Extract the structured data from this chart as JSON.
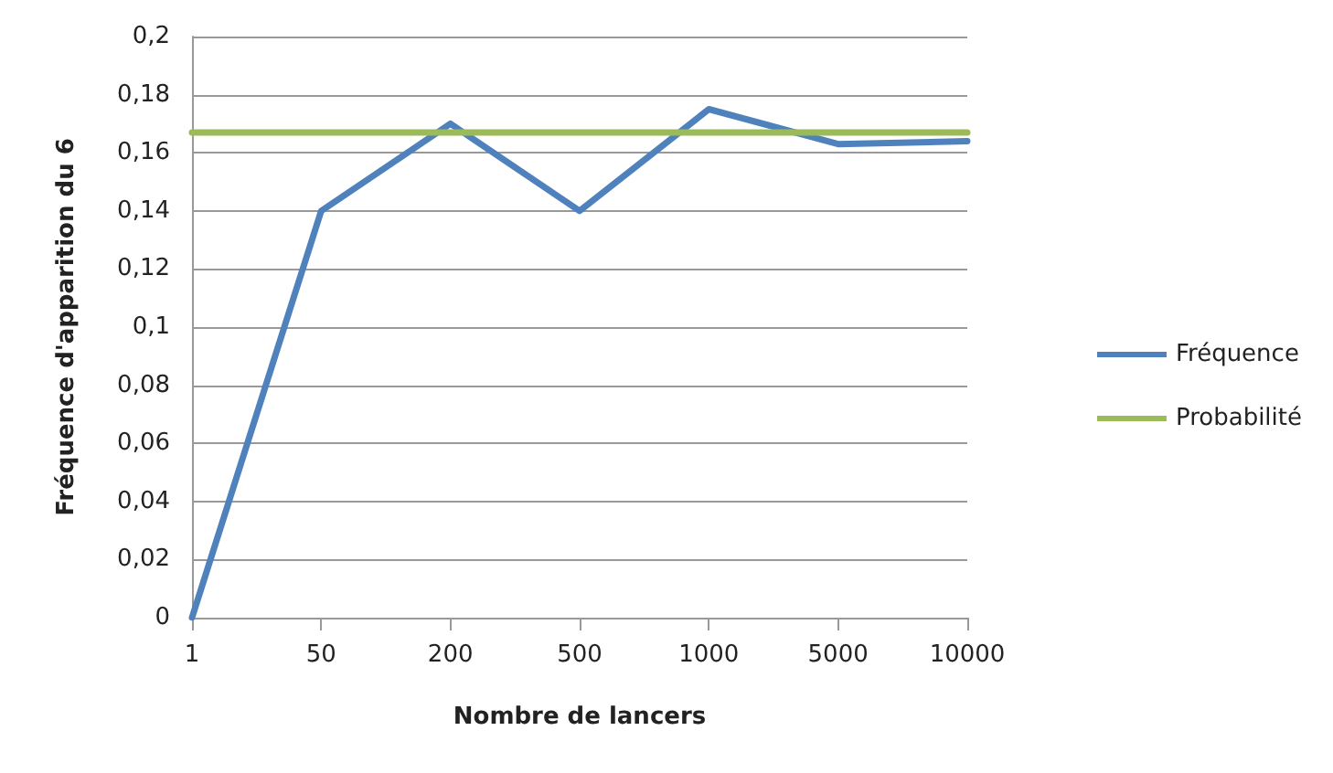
{
  "chart_data": {
    "type": "line",
    "xlabel": "Nombre de lancers",
    "ylabel": "Fréquence d'apparition du 6",
    "categories": [
      "1",
      "50",
      "200",
      "500",
      "1000",
      "5000",
      "10000"
    ],
    "series": [
      {
        "name": "Fréquence",
        "color": "#4f81bd",
        "values": [
          0,
          0.14,
          0.17,
          0.14,
          0.175,
          0.163,
          0.164
        ]
      },
      {
        "name": "Probabilité",
        "color": "#9bbb59",
        "values": [
          0.167,
          0.167,
          0.167,
          0.167,
          0.167,
          0.167,
          0.167
        ]
      }
    ],
    "ylim": [
      0,
      0.2
    ],
    "yticks": [
      0,
      {
        "value": 0.02,
        "label": "0,02"
      },
      {
        "value": 0.04,
        "label": "0,04"
      },
      {
        "value": 0.06,
        "label": "0,06"
      },
      {
        "value": 0.08,
        "label": "0,08"
      },
      {
        "value": 0.1,
        "label": "0,1"
      },
      {
        "value": 0.12,
        "label": "0,12"
      },
      {
        "value": 0.14,
        "label": "0,14"
      },
      {
        "value": 0.16,
        "label": "0,16"
      },
      {
        "value": 0.18,
        "label": "0,18"
      },
      {
        "value": 0.2,
        "label": "0,2"
      }
    ],
    "grid": "y",
    "legend": "right",
    "marker": "none",
    "line_style": "solid"
  }
}
